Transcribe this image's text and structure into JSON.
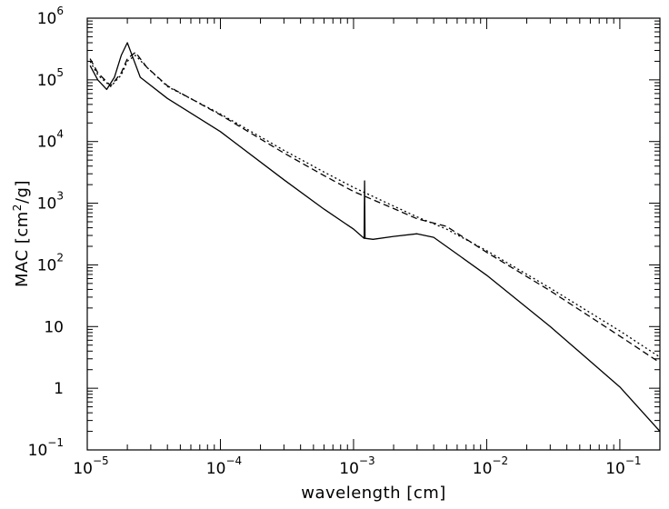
{
  "chart_data": {
    "type": "line",
    "xlabel": "wavelength  [cm]",
    "ylabel_parts": {
      "pre": "MAC  [cm",
      "sup": "2",
      "post": "/g]"
    },
    "x_scale": "log",
    "y_scale": "log",
    "xlim": [
      1e-05,
      0.2
    ],
    "ylim": [
      0.1,
      1000000
    ],
    "grid": false,
    "x_ticks": [
      {
        "value": 1e-05,
        "base": "10",
        "exp": "−5"
      },
      {
        "value": 0.0001,
        "base": "10",
        "exp": "−4"
      },
      {
        "value": 0.001,
        "base": "10",
        "exp": "−3"
      },
      {
        "value": 0.01,
        "base": "10",
        "exp": "−2"
      },
      {
        "value": 0.1,
        "base": "10",
        "exp": "−1"
      }
    ],
    "y_ticks": [
      {
        "value": 0.1,
        "base": "10",
        "exp": "−1"
      },
      {
        "value": 1,
        "base": "1",
        "exp": ""
      },
      {
        "value": 10,
        "base": "10",
        "exp": ""
      },
      {
        "value": 100,
        "base": "10",
        "exp": "2"
      },
      {
        "value": 1000,
        "base": "10",
        "exp": "3"
      },
      {
        "value": 10000,
        "base": "10",
        "exp": "4"
      },
      {
        "value": 100000,
        "base": "10",
        "exp": "5"
      },
      {
        "value": 1000000,
        "base": "10",
        "exp": "6"
      }
    ],
    "series": [
      {
        "style": "solid",
        "points": [
          [
            1.05e-05,
            170000
          ],
          [
            1.2e-05,
            100000
          ],
          [
            1.4e-05,
            70000
          ],
          [
            1.6e-05,
            110000
          ],
          [
            1.8e-05,
            250000
          ],
          [
            2e-05,
            400000
          ],
          [
            2.2e-05,
            230000
          ],
          [
            2.5e-05,
            110000
          ],
          [
            4e-05,
            50000
          ],
          [
            0.0001,
            14500
          ],
          [
            0.0003,
            2400
          ],
          [
            0.0006,
            800
          ],
          [
            0.001,
            380
          ],
          [
            0.0012,
            270
          ],
          [
            0.00121,
            2300
          ],
          [
            0.00122,
            270
          ],
          [
            0.0014,
            260
          ],
          [
            0.002,
            290
          ],
          [
            0.003,
            320
          ],
          [
            0.004,
            280
          ],
          [
            0.006,
            150
          ],
          [
            0.01,
            68
          ],
          [
            0.03,
            10
          ],
          [
            0.1,
            1.05
          ],
          [
            0.2,
            0.2
          ]
        ]
      },
      {
        "style": "dashed",
        "points": [
          [
            1.05e-05,
            220000
          ],
          [
            1.2e-05,
            130000
          ],
          [
            1.5e-05,
            80000
          ],
          [
            1.8e-05,
            130000
          ],
          [
            2e-05,
            220000
          ],
          [
            2.3e-05,
            280000
          ],
          [
            2.8e-05,
            160000
          ],
          [
            4e-05,
            80000
          ],
          [
            0.0001,
            27000
          ],
          [
            0.0003,
            6500
          ],
          [
            0.0006,
            2800
          ],
          [
            0.001,
            1550
          ],
          [
            0.002,
            820
          ],
          [
            0.003,
            560
          ],
          [
            0.005,
            420
          ],
          [
            0.01,
            160
          ],
          [
            0.03,
            38
          ],
          [
            0.1,
            7
          ],
          [
            0.2,
            2.6
          ]
        ]
      },
      {
        "style": "dotted",
        "points": [
          [
            1.05e-05,
            200000
          ],
          [
            1.2e-05,
            120000
          ],
          [
            1.5e-05,
            78000
          ],
          [
            1.8e-05,
            120000
          ],
          [
            2e-05,
            200000
          ],
          [
            2.3e-05,
            250000
          ],
          [
            2.8e-05,
            160000
          ],
          [
            4e-05,
            78000
          ],
          [
            0.0001,
            28000
          ],
          [
            0.0003,
            7200
          ],
          [
            0.0006,
            3200
          ],
          [
            0.001,
            1800
          ],
          [
            0.002,
            900
          ],
          [
            0.003,
            600
          ],
          [
            0.005,
            380
          ],
          [
            0.01,
            170
          ],
          [
            0.03,
            42
          ],
          [
            0.1,
            8.5
          ],
          [
            0.2,
            3.2
          ]
        ]
      }
    ]
  }
}
